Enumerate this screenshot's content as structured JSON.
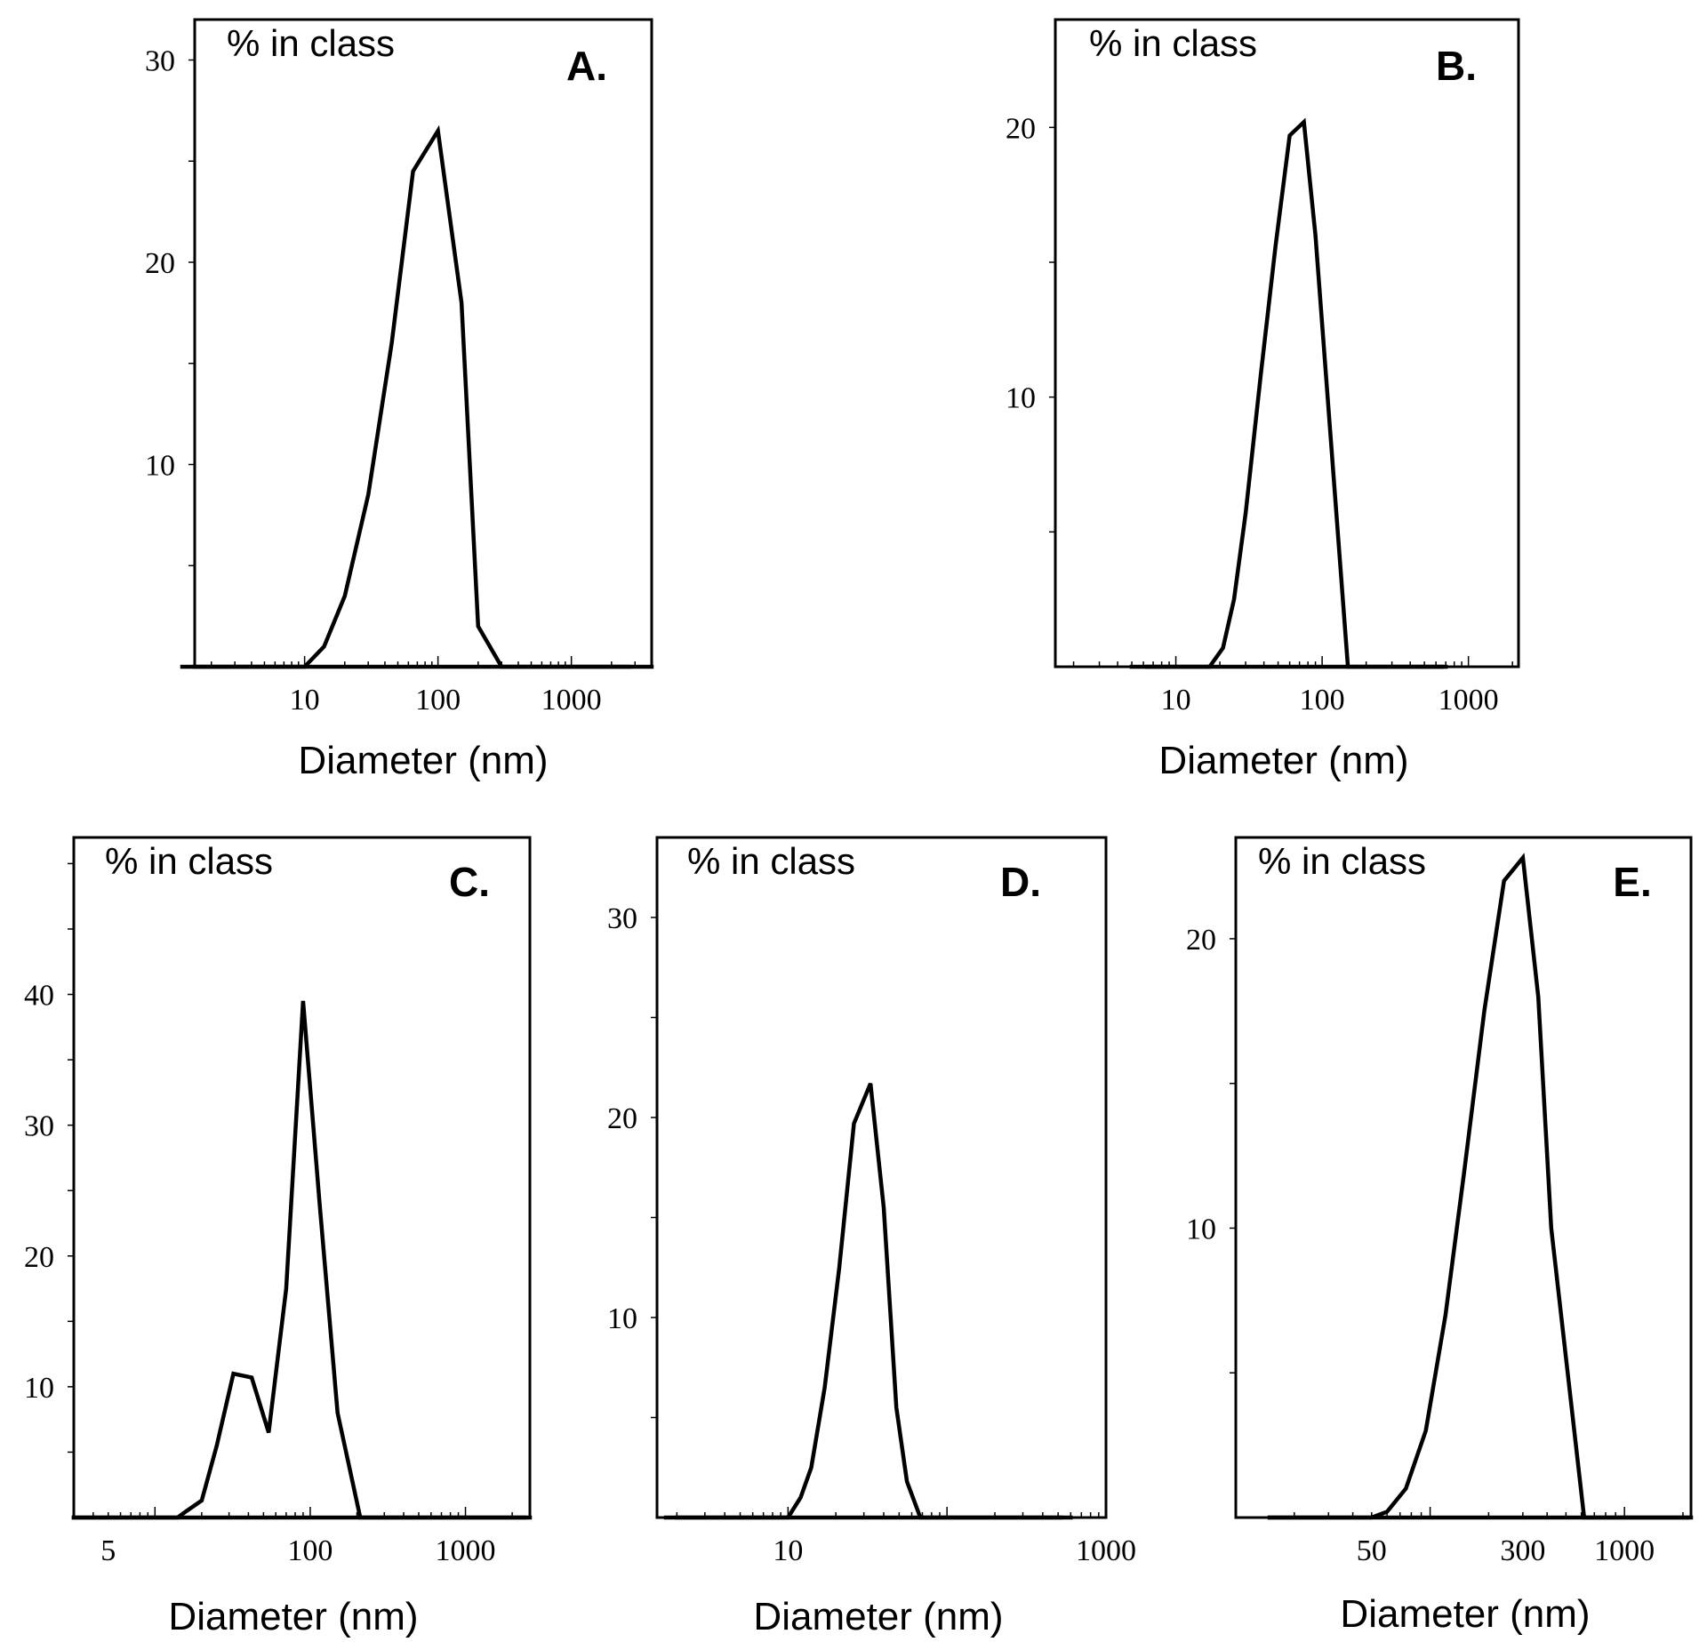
{
  "chart_data": [
    {
      "type": "line",
      "panel_label": "A.",
      "series_label": "% in class",
      "xlabel": "Diameter (nm)",
      "xscale": "log",
      "xlim": [
        1.5,
        4000
      ],
      "ylim": [
        0,
        32
      ],
      "yticks": [
        10,
        20,
        30
      ],
      "xticks": [
        10,
        100,
        1000
      ],
      "x": [
        1.5,
        10,
        14,
        20,
        30,
        45,
        65,
        100,
        150,
        200,
        300,
        4000
      ],
      "y": [
        0,
        0,
        1,
        3.5,
        8.5,
        16,
        24.5,
        26.5,
        18,
        2,
        0,
        0
      ]
    },
    {
      "type": "line",
      "panel_label": "B.",
      "series_label": "% in class",
      "xlabel": "Diameter (nm)",
      "xscale": "log",
      "xlim": [
        1.5,
        2200
      ],
      "ylim": [
        0,
        24
      ],
      "yticks": [
        10,
        20
      ],
      "xticks": [
        10,
        100,
        1000
      ],
      "x": [
        5,
        17,
        21,
        25,
        30,
        38,
        48,
        60,
        75,
        90,
        150,
        700
      ],
      "y": [
        0,
        0,
        0.7,
        2.5,
        5.7,
        10.8,
        15.6,
        19.7,
        20.2,
        16,
        0,
        0
      ]
    },
    {
      "type": "line",
      "panel_label": "C.",
      "series_label": "% in class",
      "xlabel": "Diameter (nm)",
      "xscale": "log",
      "xlim": [
        3,
        2600
      ],
      "ylim": [
        0,
        52
      ],
      "yticks": [
        10,
        20,
        30,
        40
      ],
      "xticks": [
        5,
        100,
        1000
      ],
      "x": [
        3,
        14,
        16,
        20,
        25,
        32,
        42,
        54,
        70,
        90,
        115,
        150,
        210,
        2400
      ],
      "y": [
        0,
        0,
        0.5,
        1.3,
        5.5,
        11,
        10.7,
        6.5,
        17.5,
        39.5,
        24,
        8,
        0,
        0
      ]
    },
    {
      "type": "line",
      "panel_label": "D.",
      "series_label": "% in class",
      "xlabel": "Diameter (nm)",
      "xscale": "log",
      "xlim": [
        1.5,
        1000
      ],
      "ylim": [
        0,
        34
      ],
      "yticks": [
        10,
        20,
        30
      ],
      "xticks": [
        10,
        1000
      ],
      "x": [
        2,
        10,
        12,
        14,
        17,
        21,
        26,
        33,
        40,
        48,
        56,
        68,
        600
      ],
      "y": [
        0,
        0,
        1,
        2.5,
        6.5,
        12.5,
        19.7,
        21.7,
        15.5,
        5.5,
        1.8,
        0,
        0
      ]
    },
    {
      "type": "line",
      "panel_label": "E.",
      "series_label": "% in class",
      "xlabel": "Diameter (nm)",
      "xscale": "log",
      "xlim": [
        10,
        2200
      ],
      "ylim": [
        0,
        23.5
      ],
      "yticks": [
        10,
        20
      ],
      "xticks": [
        50,
        300,
        1000
      ],
      "x": [
        15,
        50,
        60,
        75,
        95,
        120,
        150,
        190,
        240,
        300,
        360,
        420,
        620,
        2100
      ],
      "y": [
        0,
        0,
        0.2,
        1,
        3,
        7,
        12,
        17.5,
        22,
        22.8,
        18,
        10,
        0,
        0
      ]
    }
  ]
}
